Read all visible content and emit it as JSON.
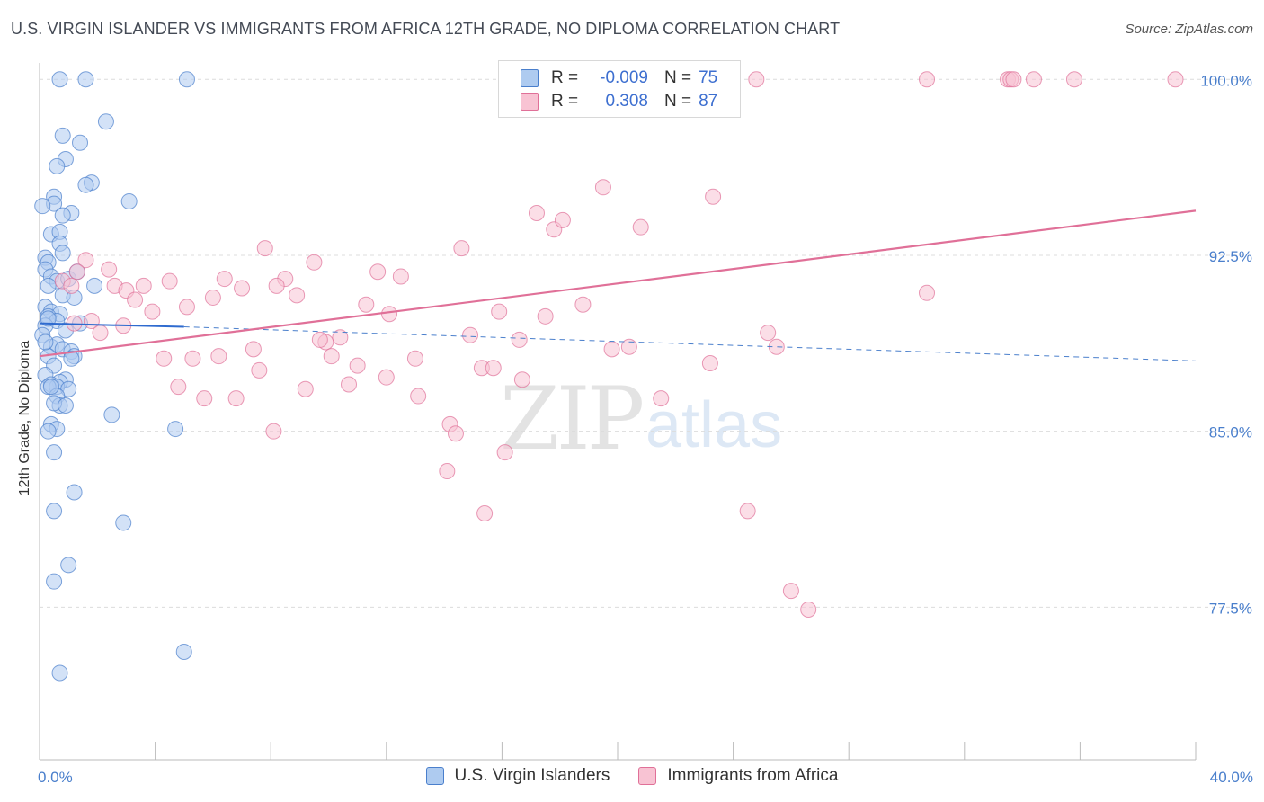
{
  "header": {
    "title": "U.S. VIRGIN ISLANDER VS IMMIGRANTS FROM AFRICA 12TH GRADE, NO DIPLOMA CORRELATION CHART",
    "source": "Source: ZipAtlas.com"
  },
  "watermark": {
    "zip": "ZIP",
    "atlas": "atlas"
  },
  "legend": {
    "r_label": "R =",
    "n_label": "N =",
    "series": [
      {
        "name": "U.S. Virgin Islanders",
        "r": "-0.009",
        "n": "75",
        "color": "#4a7fcc",
        "fill": "#aecbf0"
      },
      {
        "name": "Immigrants from Africa",
        "r": "0.308",
        "n": "87",
        "color": "#e07098",
        "fill": "#f8c3d3"
      }
    ]
  },
  "chart_data": {
    "type": "scatter",
    "title": "U.S. VIRGIN ISLANDER VS IMMIGRANTS FROM AFRICA 12TH GRADE, NO DIPLOMA CORRELATION CHART",
    "ylabel": "12th Grade, No Diploma",
    "xlabel": "",
    "xlim": [
      0,
      40
    ],
    "ylim": [
      71,
      100.7
    ],
    "x_tick_labels": [
      "0.0%",
      "40.0%"
    ],
    "y_ticks": [
      77.5,
      85.0,
      92.5,
      100.0
    ],
    "y_tick_labels": [
      "77.5%",
      "85.0%",
      "92.5%",
      "100.0%"
    ],
    "grid": true,
    "legend_position": "top-center",
    "series": [
      {
        "name": "U.S. Virgin Islanders",
        "color": "#4a7fcc",
        "trend": {
          "x": [
            0,
            5.0
          ],
          "y": [
            89.6,
            89.45
          ],
          "dashed_to": [
            40,
            88.0
          ]
        },
        "points": [
          [
            0.7,
            100
          ],
          [
            1.6,
            100
          ],
          [
            5.1,
            100
          ],
          [
            2.3,
            98.2
          ],
          [
            0.8,
            97.6
          ],
          [
            1.4,
            97.3
          ],
          [
            0.9,
            96.6
          ],
          [
            0.6,
            96.3
          ],
          [
            1.8,
            95.6
          ],
          [
            1.6,
            95.5
          ],
          [
            0.5,
            95.0
          ],
          [
            3.1,
            94.8
          ],
          [
            0.5,
            94.7
          ],
          [
            0.1,
            94.6
          ],
          [
            1.1,
            94.3
          ],
          [
            0.8,
            94.2
          ],
          [
            0.4,
            93.4
          ],
          [
            0.7,
            93.5
          ],
          [
            0.7,
            93.0
          ],
          [
            0.8,
            92.6
          ],
          [
            0.2,
            92.4
          ],
          [
            0.3,
            92.2
          ],
          [
            0.2,
            91.9
          ],
          [
            0.4,
            91.6
          ],
          [
            0.6,
            91.4
          ],
          [
            1.0,
            91.5
          ],
          [
            1.9,
            91.2
          ],
          [
            0.3,
            91.2
          ],
          [
            0.8,
            90.8
          ],
          [
            1.2,
            90.7
          ],
          [
            0.2,
            90.3
          ],
          [
            0.4,
            90.1
          ],
          [
            0.7,
            90.0
          ],
          [
            0.3,
            89.9
          ],
          [
            0.6,
            89.7
          ],
          [
            1.4,
            89.6
          ],
          [
            0.2,
            89.5
          ],
          [
            0.9,
            89.3
          ],
          [
            0.1,
            89.1
          ],
          [
            0.4,
            88.6
          ],
          [
            0.6,
            88.7
          ],
          [
            0.8,
            88.5
          ],
          [
            1.1,
            88.4
          ],
          [
            1.2,
            88.2
          ],
          [
            0.3,
            88.2
          ],
          [
            1.1,
            88.1
          ],
          [
            0.5,
            87.8
          ],
          [
            0.2,
            87.4
          ],
          [
            0.9,
            87.2
          ],
          [
            0.7,
            87.1
          ],
          [
            0.4,
            87.0
          ],
          [
            0.6,
            86.9
          ],
          [
            0.3,
            86.9
          ],
          [
            1.0,
            86.8
          ],
          [
            0.6,
            86.5
          ],
          [
            0.7,
            86.1
          ],
          [
            0.5,
            86.2
          ],
          [
            2.5,
            85.7
          ],
          [
            0.4,
            85.3
          ],
          [
            0.6,
            85.1
          ],
          [
            0.3,
            85.0
          ],
          [
            4.7,
            85.1
          ],
          [
            0.5,
            84.1
          ],
          [
            1.2,
            82.4
          ],
          [
            0.5,
            81.6
          ],
          [
            2.9,
            81.1
          ],
          [
            1.0,
            79.3
          ],
          [
            0.5,
            78.6
          ],
          [
            5.0,
            75.6
          ],
          [
            0.7,
            74.7
          ],
          [
            0.3,
            89.8
          ],
          [
            0.9,
            86.1
          ],
          [
            1.3,
            91.8
          ],
          [
            0.4,
            86.9
          ],
          [
            0.2,
            88.8
          ]
        ]
      },
      {
        "name": "Immigrants from Africa",
        "color": "#e07098",
        "trend": {
          "x": [
            0,
            40
          ],
          "y": [
            88.2,
            94.4
          ]
        },
        "points": [
          [
            21.4,
            100
          ],
          [
            22.1,
            100
          ],
          [
            24.8,
            100
          ],
          [
            30.7,
            100
          ],
          [
            33.5,
            100
          ],
          [
            33.6,
            100
          ],
          [
            33.7,
            100
          ],
          [
            34.4,
            100
          ],
          [
            35.8,
            100
          ],
          [
            39.3,
            100
          ],
          [
            19.5,
            95.4
          ],
          [
            23.3,
            95.0
          ],
          [
            17.2,
            94.3
          ],
          [
            17.8,
            93.6
          ],
          [
            18.1,
            94.0
          ],
          [
            20.8,
            93.7
          ],
          [
            7.8,
            92.8
          ],
          [
            14.6,
            92.8
          ],
          [
            1.6,
            92.3
          ],
          [
            9.5,
            92.2
          ],
          [
            2.4,
            91.9
          ],
          [
            1.3,
            91.8
          ],
          [
            11.7,
            91.8
          ],
          [
            12.5,
            91.6
          ],
          [
            0.8,
            91.4
          ],
          [
            4.5,
            91.4
          ],
          [
            6.4,
            91.5
          ],
          [
            8.5,
            91.5
          ],
          [
            2.6,
            91.2
          ],
          [
            3.0,
            91.0
          ],
          [
            3.6,
            91.2
          ],
          [
            7.0,
            91.1
          ],
          [
            1.1,
            91.2
          ],
          [
            8.2,
            91.2
          ],
          [
            8.9,
            90.8
          ],
          [
            3.3,
            90.6
          ],
          [
            6.0,
            90.7
          ],
          [
            5.1,
            90.3
          ],
          [
            11.3,
            90.4
          ],
          [
            3.9,
            90.1
          ],
          [
            12.1,
            90.0
          ],
          [
            15.9,
            90.1
          ],
          [
            17.5,
            89.9
          ],
          [
            18.8,
            90.4
          ],
          [
            1.8,
            89.7
          ],
          [
            2.9,
            89.5
          ],
          [
            2.1,
            89.2
          ],
          [
            14.9,
            89.1
          ],
          [
            10.4,
            89.0
          ],
          [
            9.9,
            88.8
          ],
          [
            9.7,
            88.9
          ],
          [
            16.6,
            88.9
          ],
          [
            25.2,
            89.2
          ],
          [
            25.5,
            88.6
          ],
          [
            20.4,
            88.6
          ],
          [
            19.8,
            88.5
          ],
          [
            7.4,
            88.5
          ],
          [
            4.3,
            88.1
          ],
          [
            5.3,
            88.1
          ],
          [
            6.2,
            88.2
          ],
          [
            10.1,
            88.2
          ],
          [
            13.0,
            88.1
          ],
          [
            23.2,
            87.9
          ],
          [
            11.0,
            87.8
          ],
          [
            7.6,
            87.6
          ],
          [
            12.0,
            87.3
          ],
          [
            15.3,
            87.7
          ],
          [
            15.7,
            87.7
          ],
          [
            16.7,
            87.2
          ],
          [
            4.8,
            86.9
          ],
          [
            9.2,
            86.8
          ],
          [
            10.7,
            87.0
          ],
          [
            5.7,
            86.4
          ],
          [
            6.8,
            86.4
          ],
          [
            13.1,
            86.5
          ],
          [
            21.5,
            86.4
          ],
          [
            14.2,
            85.3
          ],
          [
            14.4,
            84.9
          ],
          [
            8.1,
            85.0
          ],
          [
            16.1,
            84.1
          ],
          [
            14.1,
            83.3
          ],
          [
            15.4,
            81.5
          ],
          [
            24.5,
            81.6
          ],
          [
            26.0,
            78.2
          ],
          [
            26.6,
            77.4
          ],
          [
            30.7,
            90.9
          ],
          [
            1.2,
            89.6
          ]
        ]
      }
    ]
  }
}
